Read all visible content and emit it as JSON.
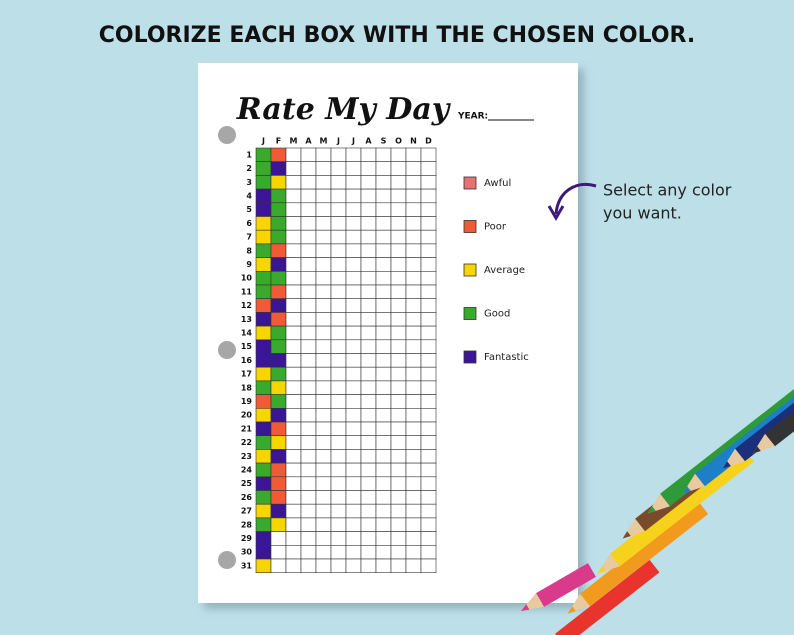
{
  "headline": "COLORIZE EACH BOX WITH THE CHOSEN COLOR.",
  "sheet": {
    "title": "Rate My Day",
    "year_label": "YEAR:",
    "months": [
      "J",
      "F",
      "M",
      "A",
      "M",
      "J",
      "J",
      "A",
      "S",
      "O",
      "N",
      "D"
    ],
    "days": [
      "1",
      "2",
      "3",
      "4",
      "5",
      "6",
      "7",
      "8",
      "9",
      "10",
      "11",
      "12",
      "13",
      "14",
      "15",
      "16",
      "17",
      "18",
      "19",
      "20",
      "21",
      "22",
      "23",
      "24",
      "25",
      "26",
      "27",
      "28",
      "29",
      "30",
      "31"
    ],
    "legend": [
      {
        "label": "Awful",
        "color": "#e57373"
      },
      {
        "label": "Poor",
        "color": "#f15a37"
      },
      {
        "label": "Average",
        "color": "#f7d500"
      },
      {
        "label": "Good",
        "color": "#3aaa2c"
      },
      {
        "label": "Fantastic",
        "color": "#3a1696"
      }
    ],
    "filled": [
      [
        "#3aaa2c",
        "#3aaa2c",
        "#3aaa2c",
        "#3a1696",
        "#3a1696",
        "#f7d500",
        "#f7d500",
        "#3aaa2c",
        "#f7d500",
        "#3aaa2c",
        "#3aaa2c",
        "#f15a37",
        "#3a1696",
        "#f7d500",
        "#3a1696",
        "#3a1696",
        "#f7d500",
        "#3aaa2c",
        "#f15a37",
        "#f7d500",
        "#3a1696",
        "#3aaa2c",
        "#f7d500",
        "#3aaa2c",
        "#3a1696",
        "#3aaa2c",
        "#f7d500",
        "#3aaa2c",
        "#3a1696",
        "#3a1696",
        "#f7d500"
      ],
      [
        "#f15a37",
        "#3a1696",
        "#f7d500",
        "#3aaa2c",
        "#3aaa2c",
        "#3aaa2c",
        "#3aaa2c",
        "#f15a37",
        "#3a1696",
        "#3aaa2c",
        "#f15a37",
        "#3a1696",
        "#f15a37",
        "#3aaa2c",
        "#3aaa2c",
        "#3a1696",
        "#3aaa2c",
        "#f7d500",
        "#3aaa2c",
        "#3a1696",
        "#f15a37",
        "#f7d500",
        "#3a1696",
        "#f15a37",
        "#f15a37",
        "#f15a37",
        "#3a1696",
        "#f7d500",
        null,
        null,
        null
      ]
    ]
  },
  "annotation": [
    "Select any color",
    "you want."
  ]
}
